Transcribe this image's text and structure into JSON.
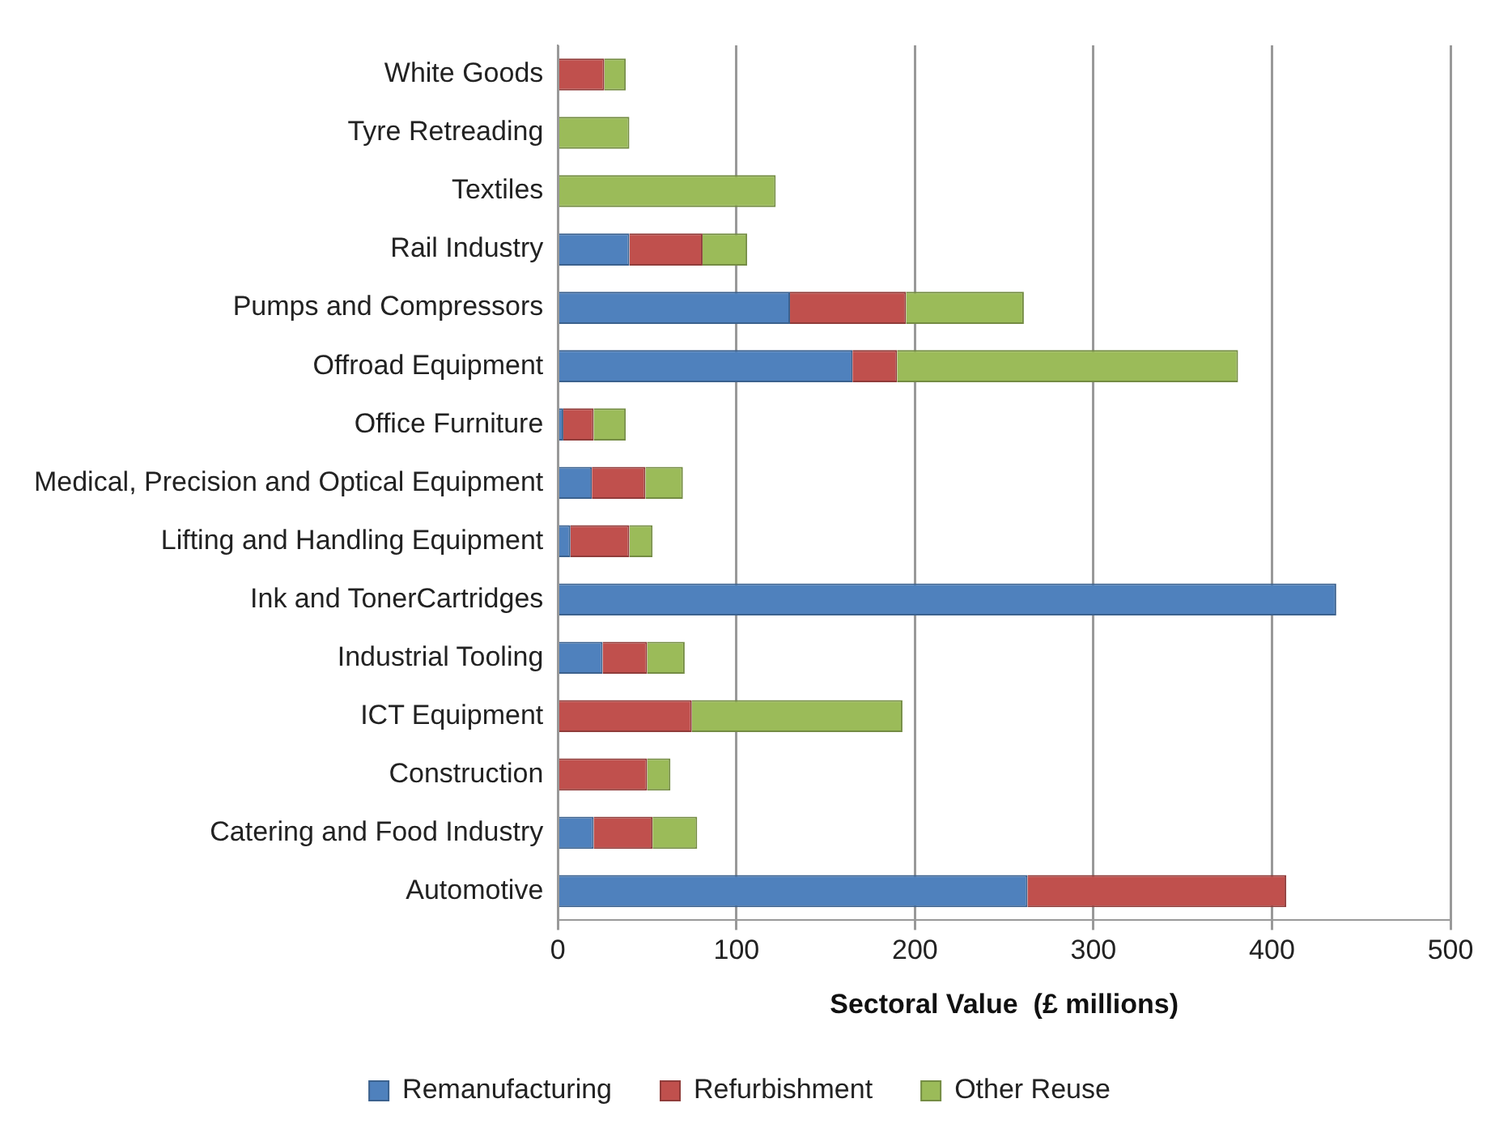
{
  "chart_data": {
    "type": "bar",
    "orientation": "horizontal",
    "stacked": true,
    "xlabel": "Sectoral Value  (£ millions)",
    "categories": [
      "White Goods",
      "Tyre Retreading",
      "Textiles",
      "Rail Industry",
      "Pumps and Compressors",
      "Offroad Equipment",
      "Office Furniture",
      "Medical, Precision and Optical Equipment",
      "Lifting and Handling Equipment",
      "Ink and TonerCartridges",
      "Industrial Tooling",
      "ICT Equipment",
      "Construction",
      "Catering and Food Industry",
      "Automotive"
    ],
    "series": [
      {
        "name": "Remanufacturing",
        "color": "#4f81bd",
        "values": [
          0,
          0,
          0,
          40,
          130,
          165,
          3,
          19,
          7,
          436,
          25,
          0,
          0,
          20,
          263
        ]
      },
      {
        "name": "Refurbishment",
        "color": "#c0504d",
        "values": [
          26,
          0,
          0,
          41,
          65,
          25,
          17,
          30,
          33,
          0,
          25,
          75,
          50,
          33,
          145
        ]
      },
      {
        "name": "Other Reuse",
        "color": "#9bbb59",
        "values": [
          12,
          40,
          122,
          25,
          66,
          191,
          18,
          21,
          13,
          0,
          21,
          118,
          13,
          25,
          0
        ]
      }
    ],
    "xlim": [
      0,
      500
    ],
    "xticks": [
      0,
      100,
      200,
      300,
      400,
      500
    ],
    "grid": "x",
    "legend": "bottom"
  }
}
